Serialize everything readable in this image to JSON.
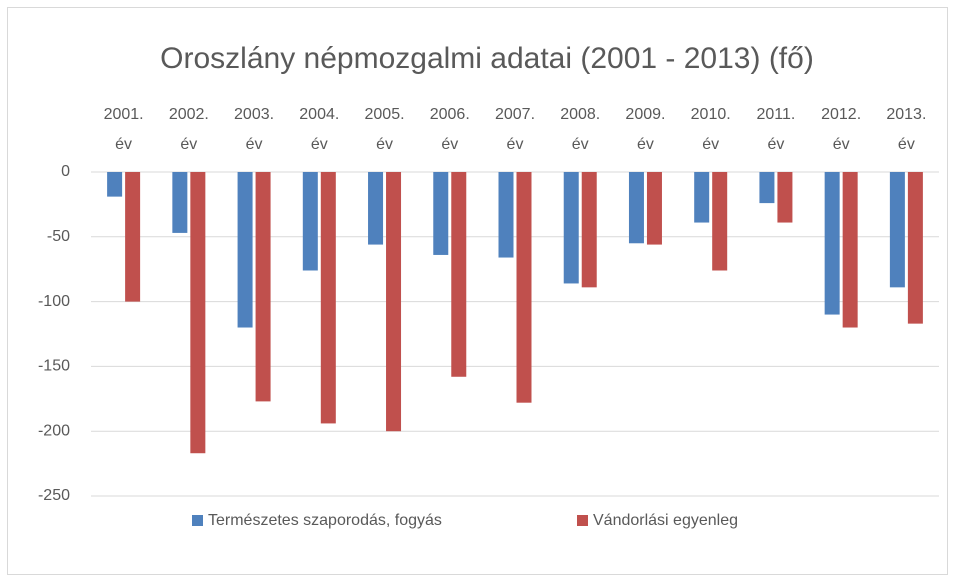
{
  "chart_data": {
    "type": "bar",
    "title": "Oroszlány népmozgalmi adatai (2001 - 2013) (fő)",
    "categories": [
      "2001. év",
      "2002. év",
      "2003. év",
      "2004. év",
      "2005. év",
      "2006. év",
      "2007. év",
      "2008. év",
      "2009. év",
      "2010. év",
      "2011. év",
      "2012. év",
      "2013. év"
    ],
    "series": [
      {
        "name": "Természetes szaporodás, fogyás",
        "color": "#4f81bd",
        "values": [
          -19,
          -47,
          -120,
          -76,
          -56,
          -64,
          -66,
          -86,
          -55,
          -39,
          -24,
          -110,
          -89
        ]
      },
      {
        "name": "Vándorlási egyenleg",
        "color": "#c0504d",
        "values": [
          -100,
          -217,
          -177,
          -194,
          -200,
          -158,
          -178,
          -89,
          -56,
          -76,
          -39,
          -120,
          -117
        ]
      }
    ],
    "ylim": [
      -250,
      0
    ],
    "yticks": [
      0,
      -50,
      -100,
      -150,
      -200,
      -250
    ],
    "grid": true,
    "legend": "bottom"
  }
}
